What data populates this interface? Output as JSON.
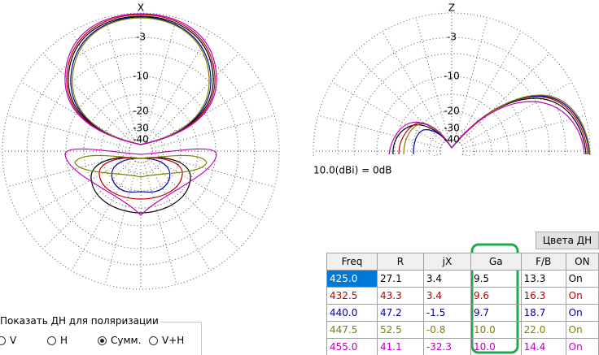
{
  "left_plot": {
    "axis_label": "X",
    "ring_labels": [
      "-3",
      "-10",
      "-20",
      "-30",
      "-40"
    ]
  },
  "right_plot": {
    "axis_label": "Z",
    "ring_labels": [
      "-3",
      "-10",
      "-20",
      "-30",
      "-40"
    ],
    "caption": "10.0(dBi) = 0dB"
  },
  "colors_button": "Цвета ДН",
  "table": {
    "headers": [
      "Freq",
      "R",
      "jX",
      "Ga",
      "F/B",
      "ON"
    ],
    "selected_row": 0,
    "rows": [
      {
        "color": "#000000",
        "cells": [
          "425.0",
          "27.1",
          "3.4",
          "9.5",
          "13.3",
          "On"
        ]
      },
      {
        "color": "#c00000",
        "cells": [
          "432.5",
          "43.3",
          "3.4",
          "9.6",
          "16.3",
          "On"
        ]
      },
      {
        "color": "#0000a0",
        "cells": [
          "440.0",
          "47.2",
          "-1.5",
          "9.7",
          "18.7",
          "On"
        ]
      },
      {
        "color": "#808000",
        "cells": [
          "447.5",
          "52.5",
          "-0.8",
          "10.0",
          "22.0",
          "On"
        ]
      },
      {
        "color": "#c000c0",
        "cells": [
          "455.0",
          "41.1",
          "-32.3",
          "10.0",
          "14.4",
          "On"
        ]
      }
    ]
  },
  "polarization": {
    "title": "Показать ДН для поляризации",
    "options": [
      "V",
      "H",
      "Сумм.",
      "V+H"
    ],
    "selected": 2
  }
}
